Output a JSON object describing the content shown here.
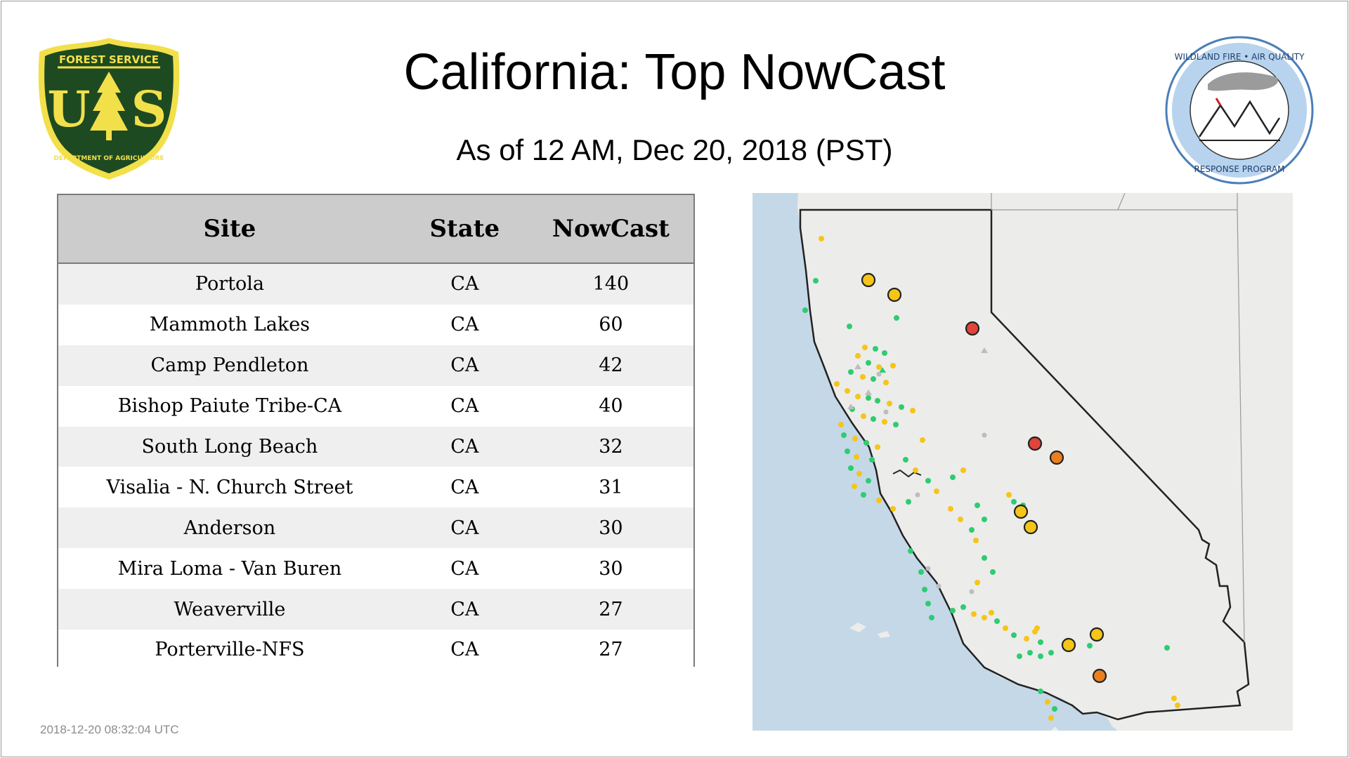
{
  "header": {
    "title": "California: Top NowCast",
    "subtitle": "As of 12 AM, Dec 20, 2018 (PST)"
  },
  "logos": {
    "left": {
      "name": "usfs-shield",
      "top_text": "FOREST SERVICE",
      "letters": "US",
      "bottom_text": "DEPARTMENT OF AGRICULTURE"
    },
    "right": {
      "name": "wildland-fire-air-quality-badge",
      "top_text": "WILDLAND FIRE • AIR QUALITY",
      "bottom_text": "RESPONSE PROGRAM"
    }
  },
  "table": {
    "columns": [
      "Site",
      "State",
      "NowCast"
    ],
    "rows": [
      {
        "site": "Portola",
        "state": "CA",
        "nowcast": "140"
      },
      {
        "site": "Mammoth Lakes",
        "state": "CA",
        "nowcast": "60"
      },
      {
        "site": "Camp Pendleton",
        "state": "CA",
        "nowcast": "42"
      },
      {
        "site": "Bishop Paiute Tribe-CA",
        "state": "CA",
        "nowcast": "40"
      },
      {
        "site": "South Long Beach",
        "state": "CA",
        "nowcast": "32"
      },
      {
        "site": "Visalia - N. Church Street",
        "state": "CA",
        "nowcast": "31"
      },
      {
        "site": "Anderson",
        "state": "CA",
        "nowcast": "30"
      },
      {
        "site": "Mira Loma - Van Buren",
        "state": "CA",
        "nowcast": "30"
      },
      {
        "site": "Weaverville",
        "state": "CA",
        "nowcast": "27"
      },
      {
        "site": "Porterville-NFS",
        "state": "CA",
        "nowcast": "27"
      }
    ]
  },
  "map": {
    "colors": {
      "green": "#2ecc71",
      "yellow": "#f5c518",
      "orange": "#e8801f",
      "red": "#e0443a",
      "gray": "#bdbdbd",
      "ocean": "#c5d8e8",
      "land": "#ececea"
    }
  },
  "footer": {
    "timestamp": "2018-12-20 08:32:04 UTC"
  }
}
